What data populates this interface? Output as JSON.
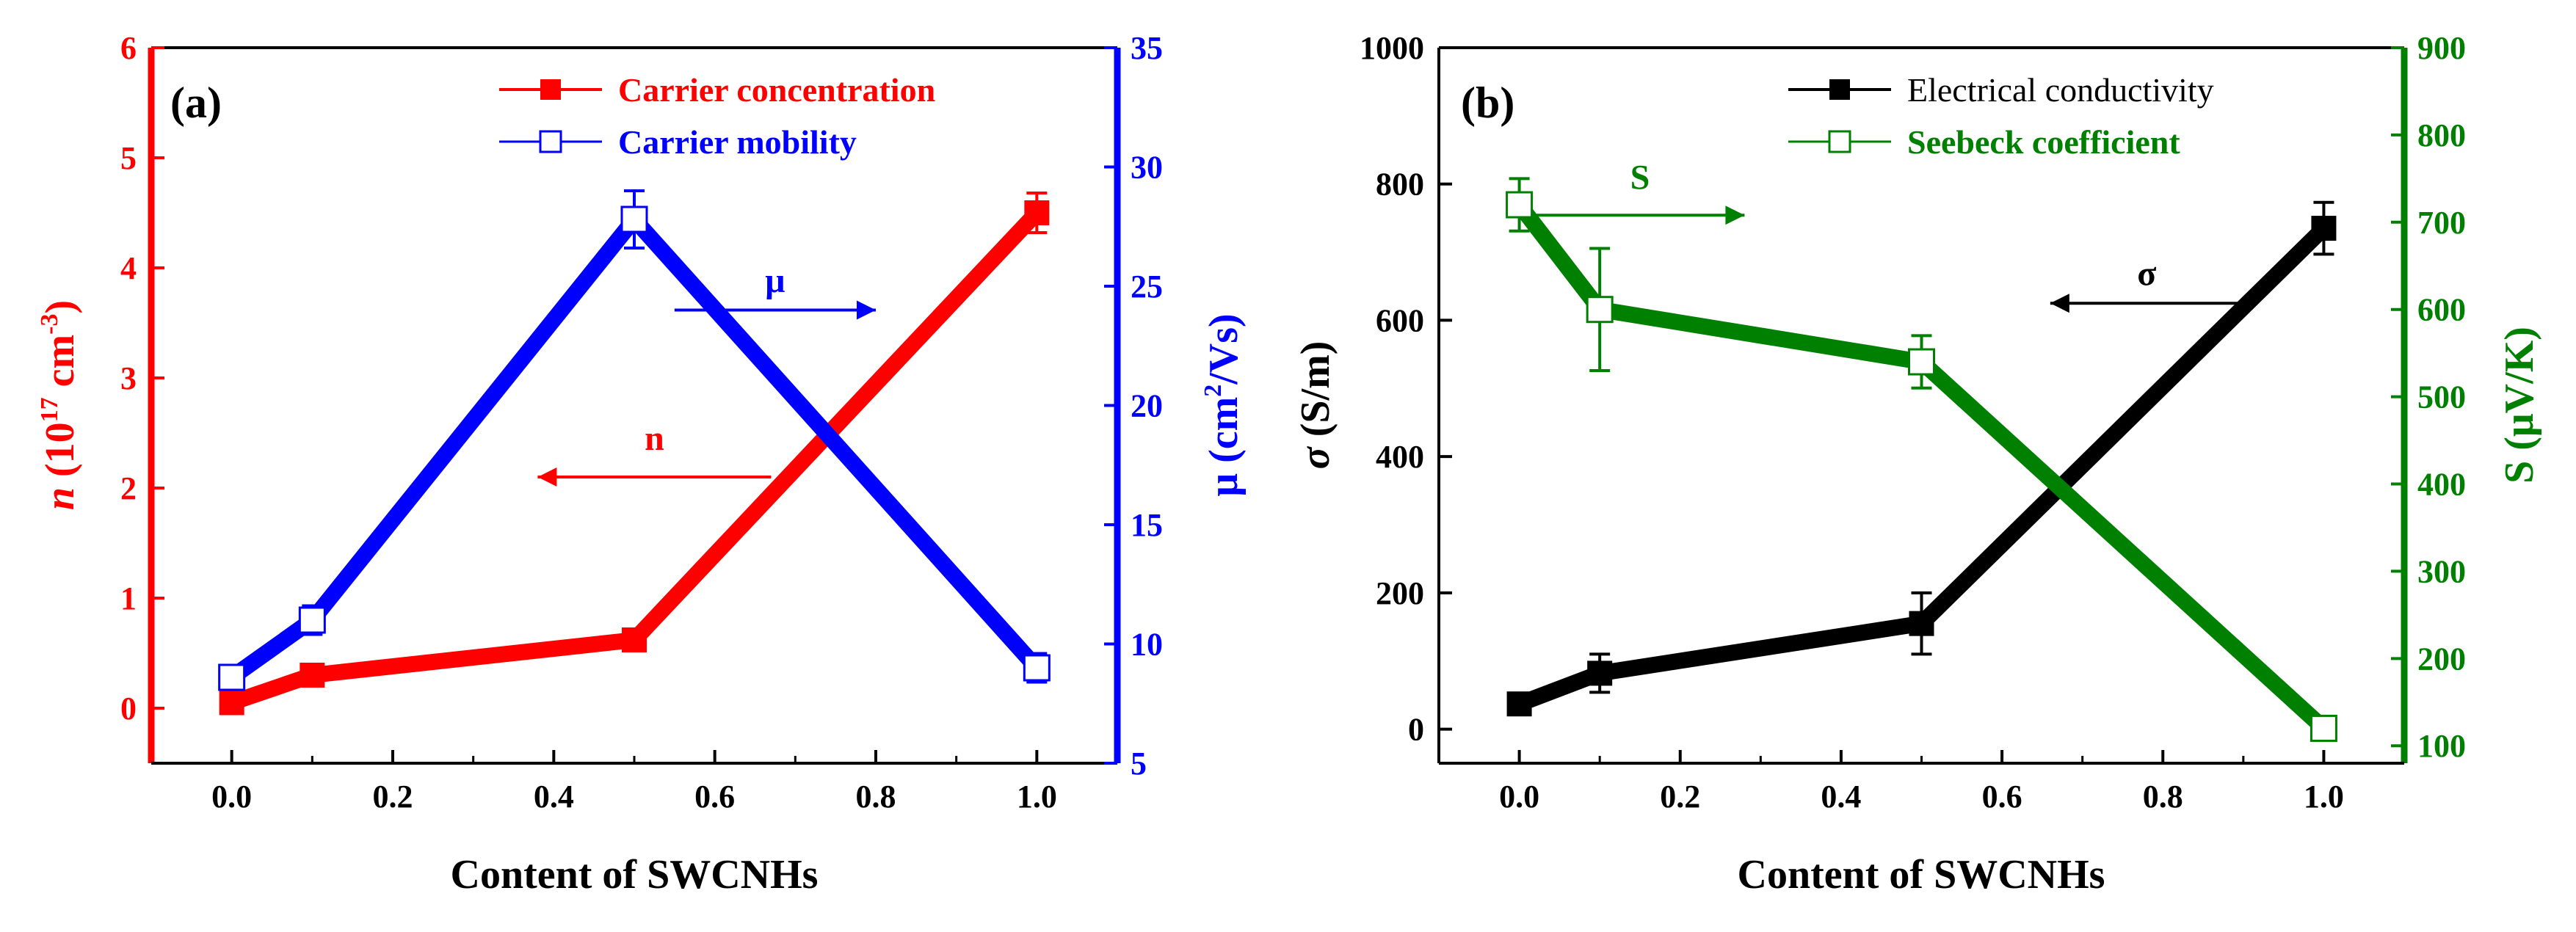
{
  "chart_data": [
    {
      "type": "line",
      "panel_label": "(a)",
      "xlabel": "Content of SWCNHs",
      "xlim": [
        -0.1,
        1.1
      ],
      "x_ticks": [
        "0.0",
        "0.2",
        "0.4",
        "0.6",
        "0.8",
        "1.0"
      ],
      "y_left": {
        "label_italic": "n",
        "label_rest": " (10",
        "label_sup": "17",
        "label_unit": " cm",
        "label_sup2": "-3",
        "label_close": ")",
        "lim": [
          -0.5,
          6
        ],
        "ticks": [
          "0",
          "1",
          "2",
          "3",
          "4",
          "5",
          "6"
        ],
        "color": "#ff0000"
      },
      "y_right": {
        "label_main": "μ (cm",
        "label_sup": "2",
        "label_tail": "/Vs)",
        "lim": [
          5,
          35
        ],
        "ticks": [
          "5",
          "10",
          "15",
          "20",
          "25",
          "30",
          "35"
        ],
        "color": "#0000ff"
      },
      "series": [
        {
          "name": "Carrier concentration",
          "axis": "left",
          "color": "#ff0000",
          "marker": "filled-square",
          "x": [
            0.0,
            0.1,
            0.5,
            1.0
          ],
          "values": [
            0.05,
            0.3,
            0.62,
            4.5
          ],
          "errors": [
            0.05,
            0.06,
            0.06,
            0.18
          ]
        },
        {
          "name": "Carrier mobility",
          "axis": "right",
          "color": "#0000ff",
          "marker": "open-square",
          "x": [
            0.0,
            0.1,
            0.5,
            1.0
          ],
          "values": [
            8.6,
            11.0,
            27.8,
            9.0
          ],
          "errors": [
            0.5,
            0.6,
            1.2,
            0.6
          ]
        }
      ],
      "annotations": [
        {
          "text": "μ",
          "color": "#0000ff",
          "arrow": "right",
          "x_from": 0.55,
          "x_to": 0.8,
          "y": 24.0,
          "axis": "right",
          "text_y": 25.0
        },
        {
          "text": "n",
          "color": "#ff0000",
          "arrow": "left",
          "x_from": 0.67,
          "x_to": 0.38,
          "y": 2.1,
          "axis": "left",
          "text_y": 2.4
        }
      ],
      "legend": "top-right"
    },
    {
      "type": "line",
      "panel_label": "(b)",
      "xlabel": "Content of SWCNHs",
      "xlim": [
        -0.1,
        1.1
      ],
      "x_ticks": [
        "0.0",
        "0.2",
        "0.4",
        "0.6",
        "0.8",
        "1.0"
      ],
      "y_left": {
        "label_italic": "σ",
        "label_rest": " (S/m)",
        "lim": [
          -50,
          1000
        ],
        "ticks": [
          "0",
          "200",
          "400",
          "600",
          "800",
          "1000"
        ],
        "color": "#000000"
      },
      "y_right": {
        "label_main": "S (μV/K)",
        "lim": [
          80,
          900
        ],
        "ticks": [
          "100",
          "200",
          "300",
          "400",
          "500",
          "600",
          "700",
          "800",
          "900"
        ],
        "color": "#008000"
      },
      "series": [
        {
          "name": "Electrical conductivity",
          "axis": "left",
          "color": "#000000",
          "marker": "filled-square",
          "x": [
            0.0,
            0.1,
            0.5,
            1.0
          ],
          "values": [
            37,
            82,
            155,
            735
          ],
          "errors": [
            12,
            28,
            45,
            38
          ]
        },
        {
          "name": "Seebeck coefficient",
          "axis": "right",
          "color": "#008000",
          "marker": "open-square",
          "x": [
            0.0,
            0.1,
            0.5,
            1.0
          ],
          "values": [
            720,
            600,
            540,
            120
          ],
          "errors": [
            30,
            70,
            30,
            12
          ]
        }
      ],
      "annotations": [
        {
          "text": "S",
          "color": "#008000",
          "arrow": "right",
          "x_from": 0.02,
          "x_to": 0.28,
          "y": 708,
          "axis": "right",
          "text_y": 745
        },
        {
          "text": "σ",
          "color": "#000000",
          "arrow": "left",
          "x_from": 0.9,
          "x_to": 0.66,
          "y": 625,
          "axis": "left",
          "text_y": 660
        }
      ],
      "legend": "top-right"
    }
  ]
}
